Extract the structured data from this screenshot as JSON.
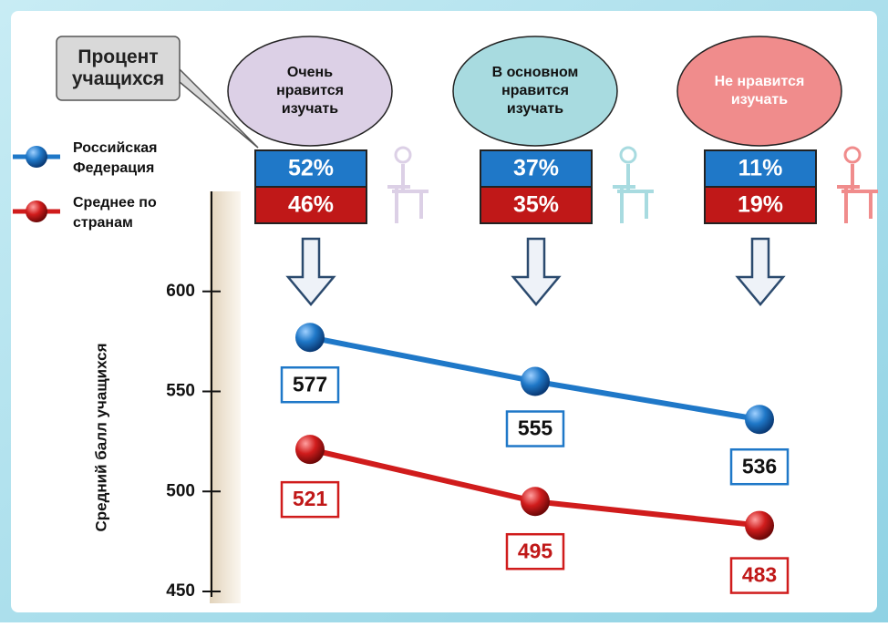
{
  "chart_data": {
    "type": "line",
    "callout": "Процент учащихся",
    "y_label": "Средний балл учащихся",
    "categories": [
      "Очень нравится изучать",
      "В основном нравится изучать",
      "Не нравится изучать"
    ],
    "category_colors": [
      "#dcd0e6",
      "#a8dbe0",
      "#f08c8c"
    ],
    "series": [
      {
        "name": "Российская Федерация",
        "color": "#1f78c8",
        "values": [
          577,
          555,
          536
        ],
        "shares": [
          52,
          37,
          11
        ],
        "share_labels": [
          "52%",
          "37%",
          "11%"
        ]
      },
      {
        "name": "Среднее по странам",
        "color": "#d01c1c",
        "values": [
          521,
          495,
          483
        ],
        "shares": [
          46,
          35,
          19
        ],
        "share_labels": [
          "46%",
          "35%",
          "19%"
        ]
      }
    ],
    "ylim": [
      450,
      650
    ],
    "yticks": [
      450,
      500,
      550,
      600
    ]
  }
}
